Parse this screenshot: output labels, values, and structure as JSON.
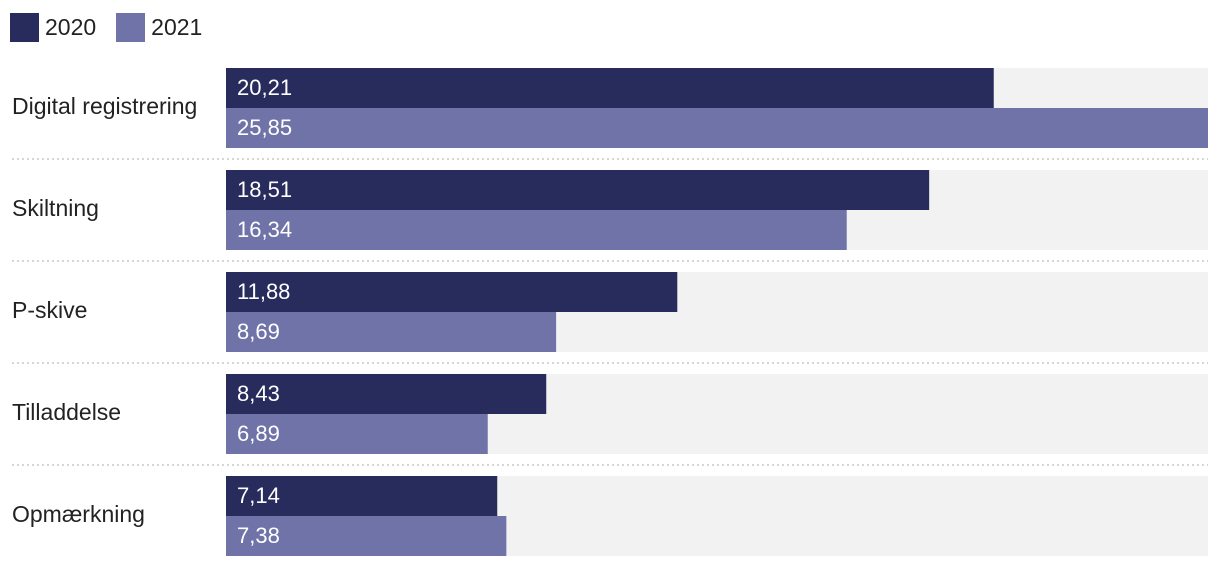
{
  "chart_data": {
    "type": "bar",
    "orientation": "horizontal",
    "categories": [
      "Digital registrering",
      "Skiltning",
      "P-skive",
      "Tilladdelse",
      "Opmærkning"
    ],
    "series": [
      {
        "name": "2020",
        "color": "#272c5c",
        "values": [
          20.21,
          18.51,
          11.88,
          8.43,
          7.14
        ],
        "labels": [
          "20,21",
          "18,51",
          "11,88",
          "8,43",
          "7,14"
        ]
      },
      {
        "name": "2021",
        "color": "#6f73a8",
        "values": [
          25.85,
          16.34,
          8.69,
          6.89,
          7.38
        ],
        "labels": [
          "25,85",
          "16,34",
          "8,69",
          "6,89",
          "7,38"
        ]
      }
    ],
    "xlim": [
      0,
      25.85
    ],
    "legend": "top-left",
    "track_color": "#f2f2f2"
  }
}
